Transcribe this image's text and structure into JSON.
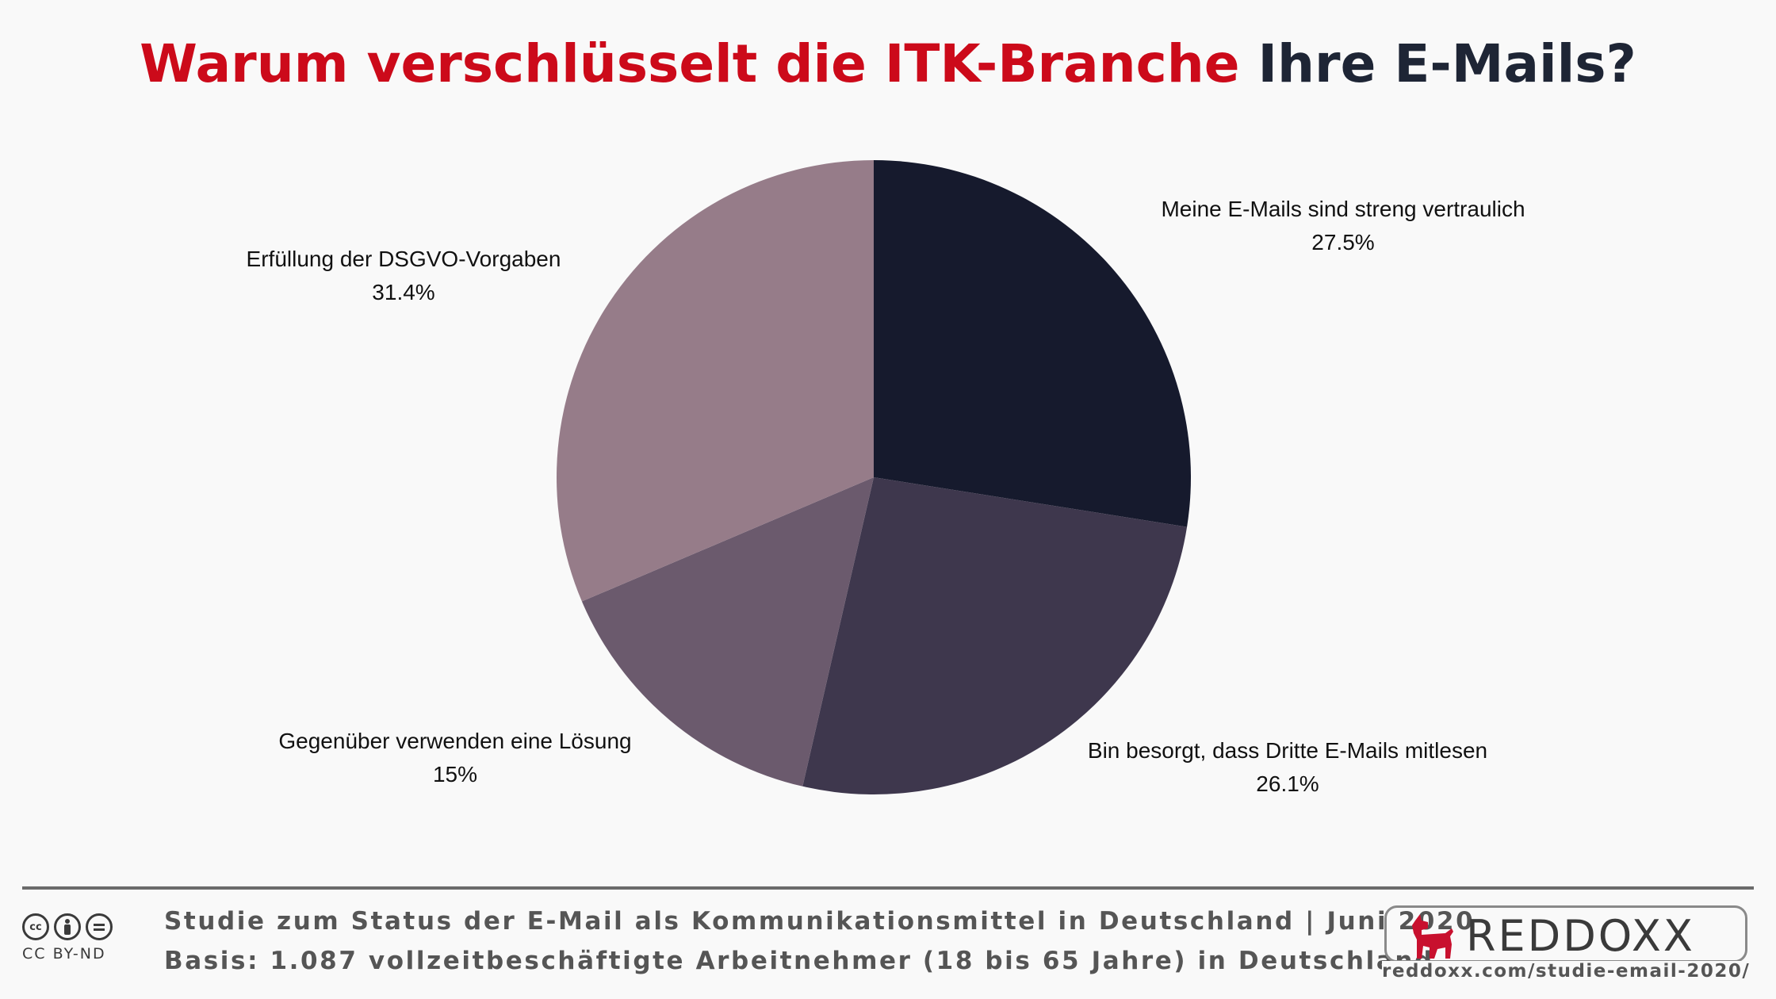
{
  "title": {
    "part1": "Warum verschlüsselt die ITK-Branche",
    "part2": "Ihre E-Mails?"
  },
  "colors": {
    "title_accent": "#cc0a1a",
    "title_dark": "#1e2535",
    "slices": [
      "#161a2d",
      "#3e374d",
      "#6b5a6d",
      "#967c89"
    ]
  },
  "chart_data": {
    "type": "pie",
    "title": "Warum verschlüsselt die ITK-Branche Ihre E-Mails?",
    "labels": [
      "Meine E-Mails sind streng vertraulich",
      "Bin besorgt, dass Dritte E-Mails mitlesen",
      "Gegenüber verwenden eine Lösung",
      "Erfüllung der DSGVO-Vorgaben"
    ],
    "values": [
      27.5,
      26.1,
      15,
      31.4
    ],
    "value_labels": [
      "27.5%",
      "26.1%",
      "15%",
      "31.4%"
    ],
    "start": "12 o'clock, clockwise",
    "legend": "none"
  },
  "footer": {
    "license": "CC BY-ND",
    "license_icons": [
      "cc-icon",
      "attribution-icon",
      "no-derivatives-icon"
    ],
    "line1": "Studie zum Status der E-Mail als Kommunikationsmittel in Deutschland | Juni 2020",
    "line2": "Basis: 1.087 vollzeitbeschäftigte Arbeitnehmer (18 bis 65 Jahre) in Deutschland"
  },
  "brand": {
    "name": "REDDOXX",
    "url": "reddoxx.com/studie-email-2020/",
    "logo_icon": "dog-logo-icon",
    "accent": "#c8102e"
  }
}
